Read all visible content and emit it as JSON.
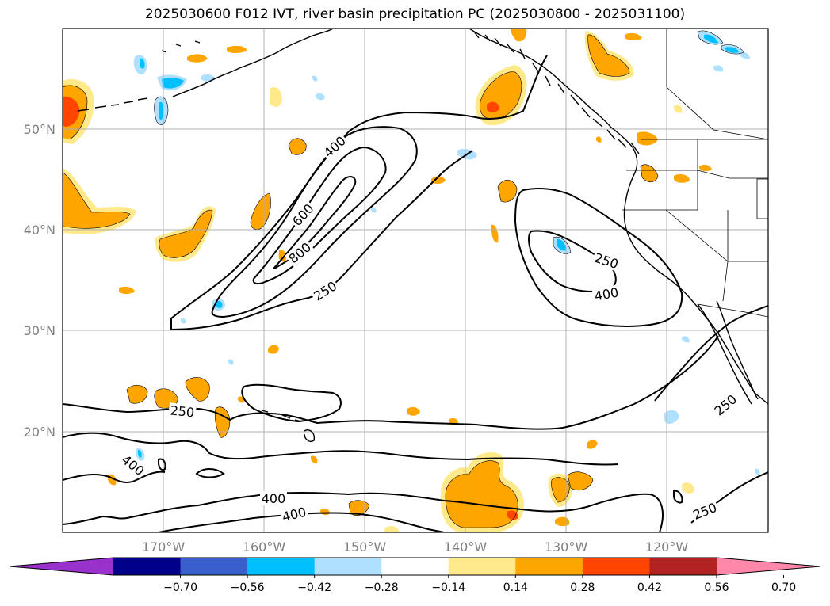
{
  "title": "2025030600 F012 IVT, river basin precipitation PC (2025030800 - 2025031100)",
  "lat_labels": [
    "50°N",
    "40°N",
    "30°N",
    "20°N"
  ],
  "lon_labels": [
    "170°W",
    "160°W",
    "150°W",
    "140°W",
    "130°W",
    "120°W"
  ],
  "contour_labels": [
    "400",
    "600",
    "800",
    "250",
    "250",
    "400",
    "250",
    "400",
    "400",
    "400",
    "250",
    "250"
  ],
  "colorbar": {
    "ticks": [
      "−0.70",
      "−0.56",
      "−0.42",
      "−0.28",
      "−0.14",
      "0.14",
      "0.28",
      "0.42",
      "0.56",
      "0.70"
    ],
    "colors": [
      "#9932cc",
      "#00008b",
      "#3a5fcd",
      "#00bfff",
      "#b0e0ff",
      "#ffffff",
      "#ffe98a",
      "#ffa500",
      "#ff4500",
      "#b22222",
      "#ff88aa"
    ]
  },
  "colors": {
    "light_yellow": "#ffe98a",
    "orange": "#ffa500",
    "red_orange": "#ff4500",
    "light_blue": "#b0e0ff",
    "deep_sky": "#00bfff",
    "grid": "#b0b0b0",
    "coast": "#000000"
  }
}
